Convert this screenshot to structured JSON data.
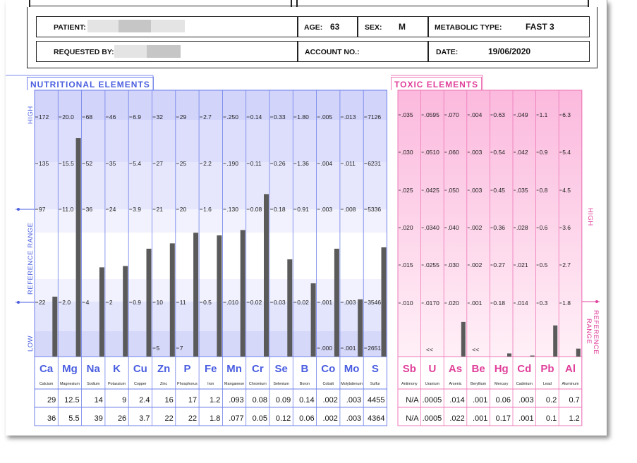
{
  "header": {
    "patient_label": "PATIENT:",
    "age_label": "AGE:",
    "age_value": "63",
    "sex_label": "SEX:",
    "sex_value": "M",
    "metabolic_label": "METABOLIC TYPE:",
    "metabolic_value": "FAST 3",
    "requested_label": "REQUESTED BY:",
    "account_label": "ACCOUNT NO.:",
    "date_label": "DATE:",
    "date_value": "19/06/2020"
  },
  "sections": {
    "nutritional_title": "NUTRITIONAL ELEMENTS",
    "toxic_title": "TOXIC ELEMENTS",
    "high_label": "HIGH",
    "low_label": "LOW",
    "ref_range_label": "REFERENCE RANGE",
    "toxic_high_label": "HIGH",
    "toxic_ref_line1": "REFERENCE",
    "toxic_ref_line2": "RANGE"
  },
  "colors": {
    "nutritional_accent": "#4a5ee0",
    "toxic_accent": "#e0409a",
    "bar": "#5a5a5a"
  },
  "chart_data": [
    {
      "type": "bar",
      "title": "NUTRITIONAL ELEMENTS",
      "categories": [
        "Ca",
        "Mg",
        "Na",
        "K",
        "Cu",
        "Zn",
        "P",
        "Fe",
        "Mn",
        "Cr",
        "Se",
        "B",
        "Co",
        "Mo",
        "S"
      ],
      "names": [
        "Calcium",
        "Magnesium",
        "Sodium",
        "Potassium",
        "Copper",
        "Zinc",
        "Phosphorus",
        "Iron",
        "Manganese",
        "Chromium",
        "Selenium",
        "Boron",
        "Cobalt",
        "Molybdenum",
        "Sulfur"
      ],
      "tick_levels": [
        "HIGH-172",
        "135",
        "97 (reference high)",
        "mid",
        "22 (reference low)",
        "LOW"
      ],
      "ticks": [
        [
          "172",
          "135",
          "97",
          "22"
        ],
        [
          "20.0",
          "15.5",
          "11.0",
          "2.0"
        ],
        [
          "68",
          "52",
          "36",
          "4"
        ],
        [
          "46",
          "35",
          "24",
          "2"
        ],
        [
          "6.9",
          "5.4",
          "3.9",
          "0.9"
        ],
        [
          "32",
          "27",
          "21",
          "10",
          "5"
        ],
        [
          "29",
          "25",
          "20",
          "11",
          "7"
        ],
        [
          "2.7",
          "2.2",
          "1.6",
          "0.5"
        ],
        [
          ".250",
          ".190",
          ".130",
          ".010"
        ],
        [
          "0.14",
          "0.11",
          "0.08",
          "0.02"
        ],
        [
          "0.33",
          "0.26",
          "0.18",
          "0.03"
        ],
        [
          "1.80",
          "1.36",
          "0.91",
          "0.02"
        ],
        [
          ".005",
          ".004",
          ".003",
          ".001",
          ".000"
        ],
        [
          ".013",
          ".011",
          ".008",
          ".003",
          ".001"
        ],
        [
          "7126",
          "6231",
          "5336",
          "3546",
          "2651"
        ]
      ],
      "series": [
        {
          "values": [
            "29",
            "12.5",
            "14",
            "9",
            "2.4",
            "16",
            "17",
            "1.2",
            ".093",
            "0.08",
            "0.09",
            "0.14",
            ".002",
            ".003",
            "4455"
          ]
        },
        {
          "values": [
            "36",
            "5.5",
            "39",
            "26",
            "3.7",
            "22",
            "22",
            "1.8",
            ".077",
            "0.05",
            "0.12",
            "0.06",
            ".002",
            ".003",
            "4364"
          ]
        }
      ],
      "bar_levels": [
        0.225,
        0.82,
        0.335,
        0.34,
        0.405,
        0.425,
        0.465,
        0.455,
        0.475,
        0.61,
        0.365,
        0.275,
        0.405,
        0.215,
        0.41
      ]
    },
    {
      "type": "bar",
      "title": "TOXIC ELEMENTS",
      "categories": [
        "Sb",
        "U",
        "As",
        "Be",
        "Hg",
        "Cd",
        "Pb",
        "Al"
      ],
      "names": [
        "Antimony",
        "Uranium",
        "Arsenic",
        "Beryllium",
        "Mercury",
        "Cadmium",
        "Lead",
        "Aluminum"
      ],
      "ticks": [
        [
          ".035",
          ".030",
          ".025",
          ".020",
          ".015",
          ".010"
        ],
        [
          ".0595",
          ".0510",
          ".0425",
          ".0340",
          ".0255",
          ".0170"
        ],
        [
          ".070",
          ".060",
          ".050",
          ".040",
          ".030",
          ".020"
        ],
        [
          ".004",
          ".003",
          ".003",
          ".002",
          ".002",
          ".001"
        ],
        [
          "0.63",
          "0.54",
          "0.45",
          "0.36",
          "0.27",
          "0.18"
        ],
        [
          ".049",
          ".042",
          ".035",
          ".028",
          ".021",
          ".014"
        ],
        [
          "1.1",
          "0.9",
          "0.8",
          "0.6",
          "0.5",
          "0.3"
        ],
        [
          "6.3",
          "5.4",
          "4.5",
          "3.6",
          "2.7",
          "1.8"
        ]
      ],
      "below_marks": [
        "",
        "<<",
        "",
        "<<",
        "",
        "",
        "",
        ""
      ],
      "series": [
        {
          "values": [
            "N/A",
            ".0005",
            ".014",
            ".001",
            "0.06",
            ".003",
            "0.2",
            "0.7"
          ]
        },
        {
          "values": [
            "N/A",
            ".0005",
            ".022",
            ".001",
            "0.17",
            ".001",
            "0.1",
            "1.2"
          ]
        }
      ],
      "bar_levels": [
        0,
        0,
        0.13,
        0,
        0.012,
        0.004,
        0.117,
        0.03
      ]
    }
  ]
}
